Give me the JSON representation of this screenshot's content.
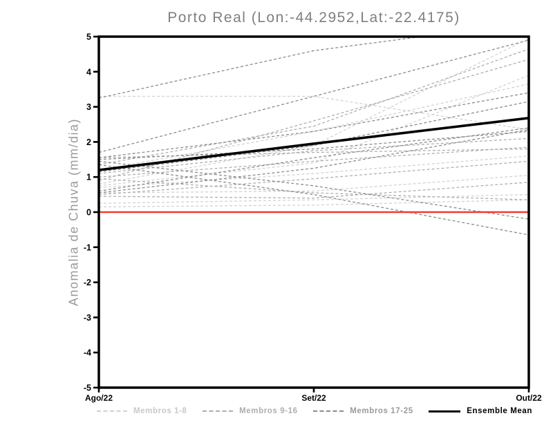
{
  "title": "Porto Real (Lon:-44.2952,Lat:-22.4175)",
  "y_axis": {
    "label": "Anomalia de Chuva (mm/dia)",
    "min": -5,
    "max": 5,
    "ticks": [
      5,
      4,
      3,
      2,
      1,
      0,
      -1,
      -2,
      -3,
      -4,
      -5
    ]
  },
  "x_axis": {
    "ticks": [
      "Ago/22",
      "Set/22",
      "Out/22"
    ]
  },
  "colors": {
    "members_1_8": "#d2d2d2",
    "members_9_16": "#aeaeae",
    "members_17_25": "#8a8a8a",
    "ensemble_mean": "#000000",
    "zero_line": "#f23b30",
    "axis": "#000000",
    "title_text": "#7f7f7f"
  },
  "legend": [
    {
      "label": "Membros 1-8",
      "color": "#d2d2d2",
      "text_color": "#c8c8c8",
      "style": "dashed"
    },
    {
      "label": "Membros 9-16",
      "color": "#aeaeae",
      "text_color": "#aeaeae",
      "style": "dashed"
    },
    {
      "label": "Membros 17-25",
      "color": "#8a8a8a",
      "text_color": "#9a9a9a",
      "style": "dashed"
    },
    {
      "label": "Ensemble Mean",
      "color": "#000000",
      "text_color": "#000000",
      "style": "solid"
    }
  ],
  "chart_data": {
    "type": "line",
    "title": "Porto Real (Lon:-44.2952,Lat:-22.4175)",
    "xlabel": "",
    "ylabel": "Anomalia de Chuva (mm/dia)",
    "ylim": [
      -5,
      5
    ],
    "x": [
      "Ago/22",
      "Set/22",
      "Out/22"
    ],
    "zero_reference_line": 0,
    "grid": false,
    "legend_position": "bottom",
    "series": [
      {
        "name": "m1",
        "group": 0,
        "values": [
          3.3,
          3.3,
          2.35
        ]
      },
      {
        "name": "m2",
        "group": 0,
        "values": [
          1.2,
          2.3,
          3.65
        ]
      },
      {
        "name": "m3",
        "group": 0,
        "values": [
          0.8,
          1.9,
          4.95
        ]
      },
      {
        "name": "m4",
        "group": 0,
        "values": [
          0.75,
          1.4,
          3.9
        ]
      },
      {
        "name": "m5",
        "group": 0,
        "values": [
          0.7,
          1.1,
          1.6
        ]
      },
      {
        "name": "m6",
        "group": 0,
        "values": [
          0.25,
          0.35,
          0.5
        ]
      },
      {
        "name": "m7",
        "group": 0,
        "values": [
          0.15,
          0.2,
          0.35
        ]
      },
      {
        "name": "m8",
        "group": 0,
        "values": [
          0.55,
          0.6,
          1.05
        ]
      },
      {
        "name": "m9",
        "group": 1,
        "values": [
          1.35,
          2.45,
          4.65
        ]
      },
      {
        "name": "m10",
        "group": 1,
        "values": [
          0.9,
          2.6,
          4.35
        ]
      },
      {
        "name": "m11",
        "group": 1,
        "values": [
          1.1,
          1.75,
          2.1
        ]
      },
      {
        "name": "m12",
        "group": 1,
        "values": [
          1.0,
          1.45,
          1.85
        ]
      },
      {
        "name": "m13",
        "group": 1,
        "values": [
          0.95,
          0.55,
          0.35
        ]
      },
      {
        "name": "m14",
        "group": 1,
        "values": [
          0.5,
          0.95,
          1.45
        ]
      },
      {
        "name": "m15",
        "group": 1,
        "values": [
          0.45,
          0.4,
          0.85
        ]
      },
      {
        "name": "m16",
        "group": 1,
        "values": [
          1.55,
          1.7,
          1.8
        ]
      },
      {
        "name": "m17",
        "group": 2,
        "values": [
          3.25,
          4.6,
          5.4
        ]
      },
      {
        "name": "m18",
        "group": 2,
        "values": [
          1.7,
          3.3,
          4.9
        ]
      },
      {
        "name": "m19",
        "group": 2,
        "values": [
          1.55,
          2.3,
          3.4
        ]
      },
      {
        "name": "m20",
        "group": 2,
        "values": [
          1.45,
          0.75,
          -0.2
        ]
      },
      {
        "name": "m21",
        "group": 2,
        "values": [
          1.35,
          0.5,
          -0.65
        ]
      },
      {
        "name": "m22",
        "group": 2,
        "values": [
          0.6,
          1.55,
          2.4
        ]
      },
      {
        "name": "m23",
        "group": 2,
        "values": [
          0.55,
          1.25,
          2.35
        ]
      },
      {
        "name": "m24",
        "group": 2,
        "values": [
          1.5,
          1.8,
          2.3
        ]
      },
      {
        "name": "m25",
        "group": 2,
        "values": [
          1.15,
          1.9,
          3.15
        ]
      }
    ],
    "ensemble_mean": {
      "name": "Ensemble Mean",
      "values": [
        1.2,
        1.95,
        2.68
      ]
    }
  }
}
